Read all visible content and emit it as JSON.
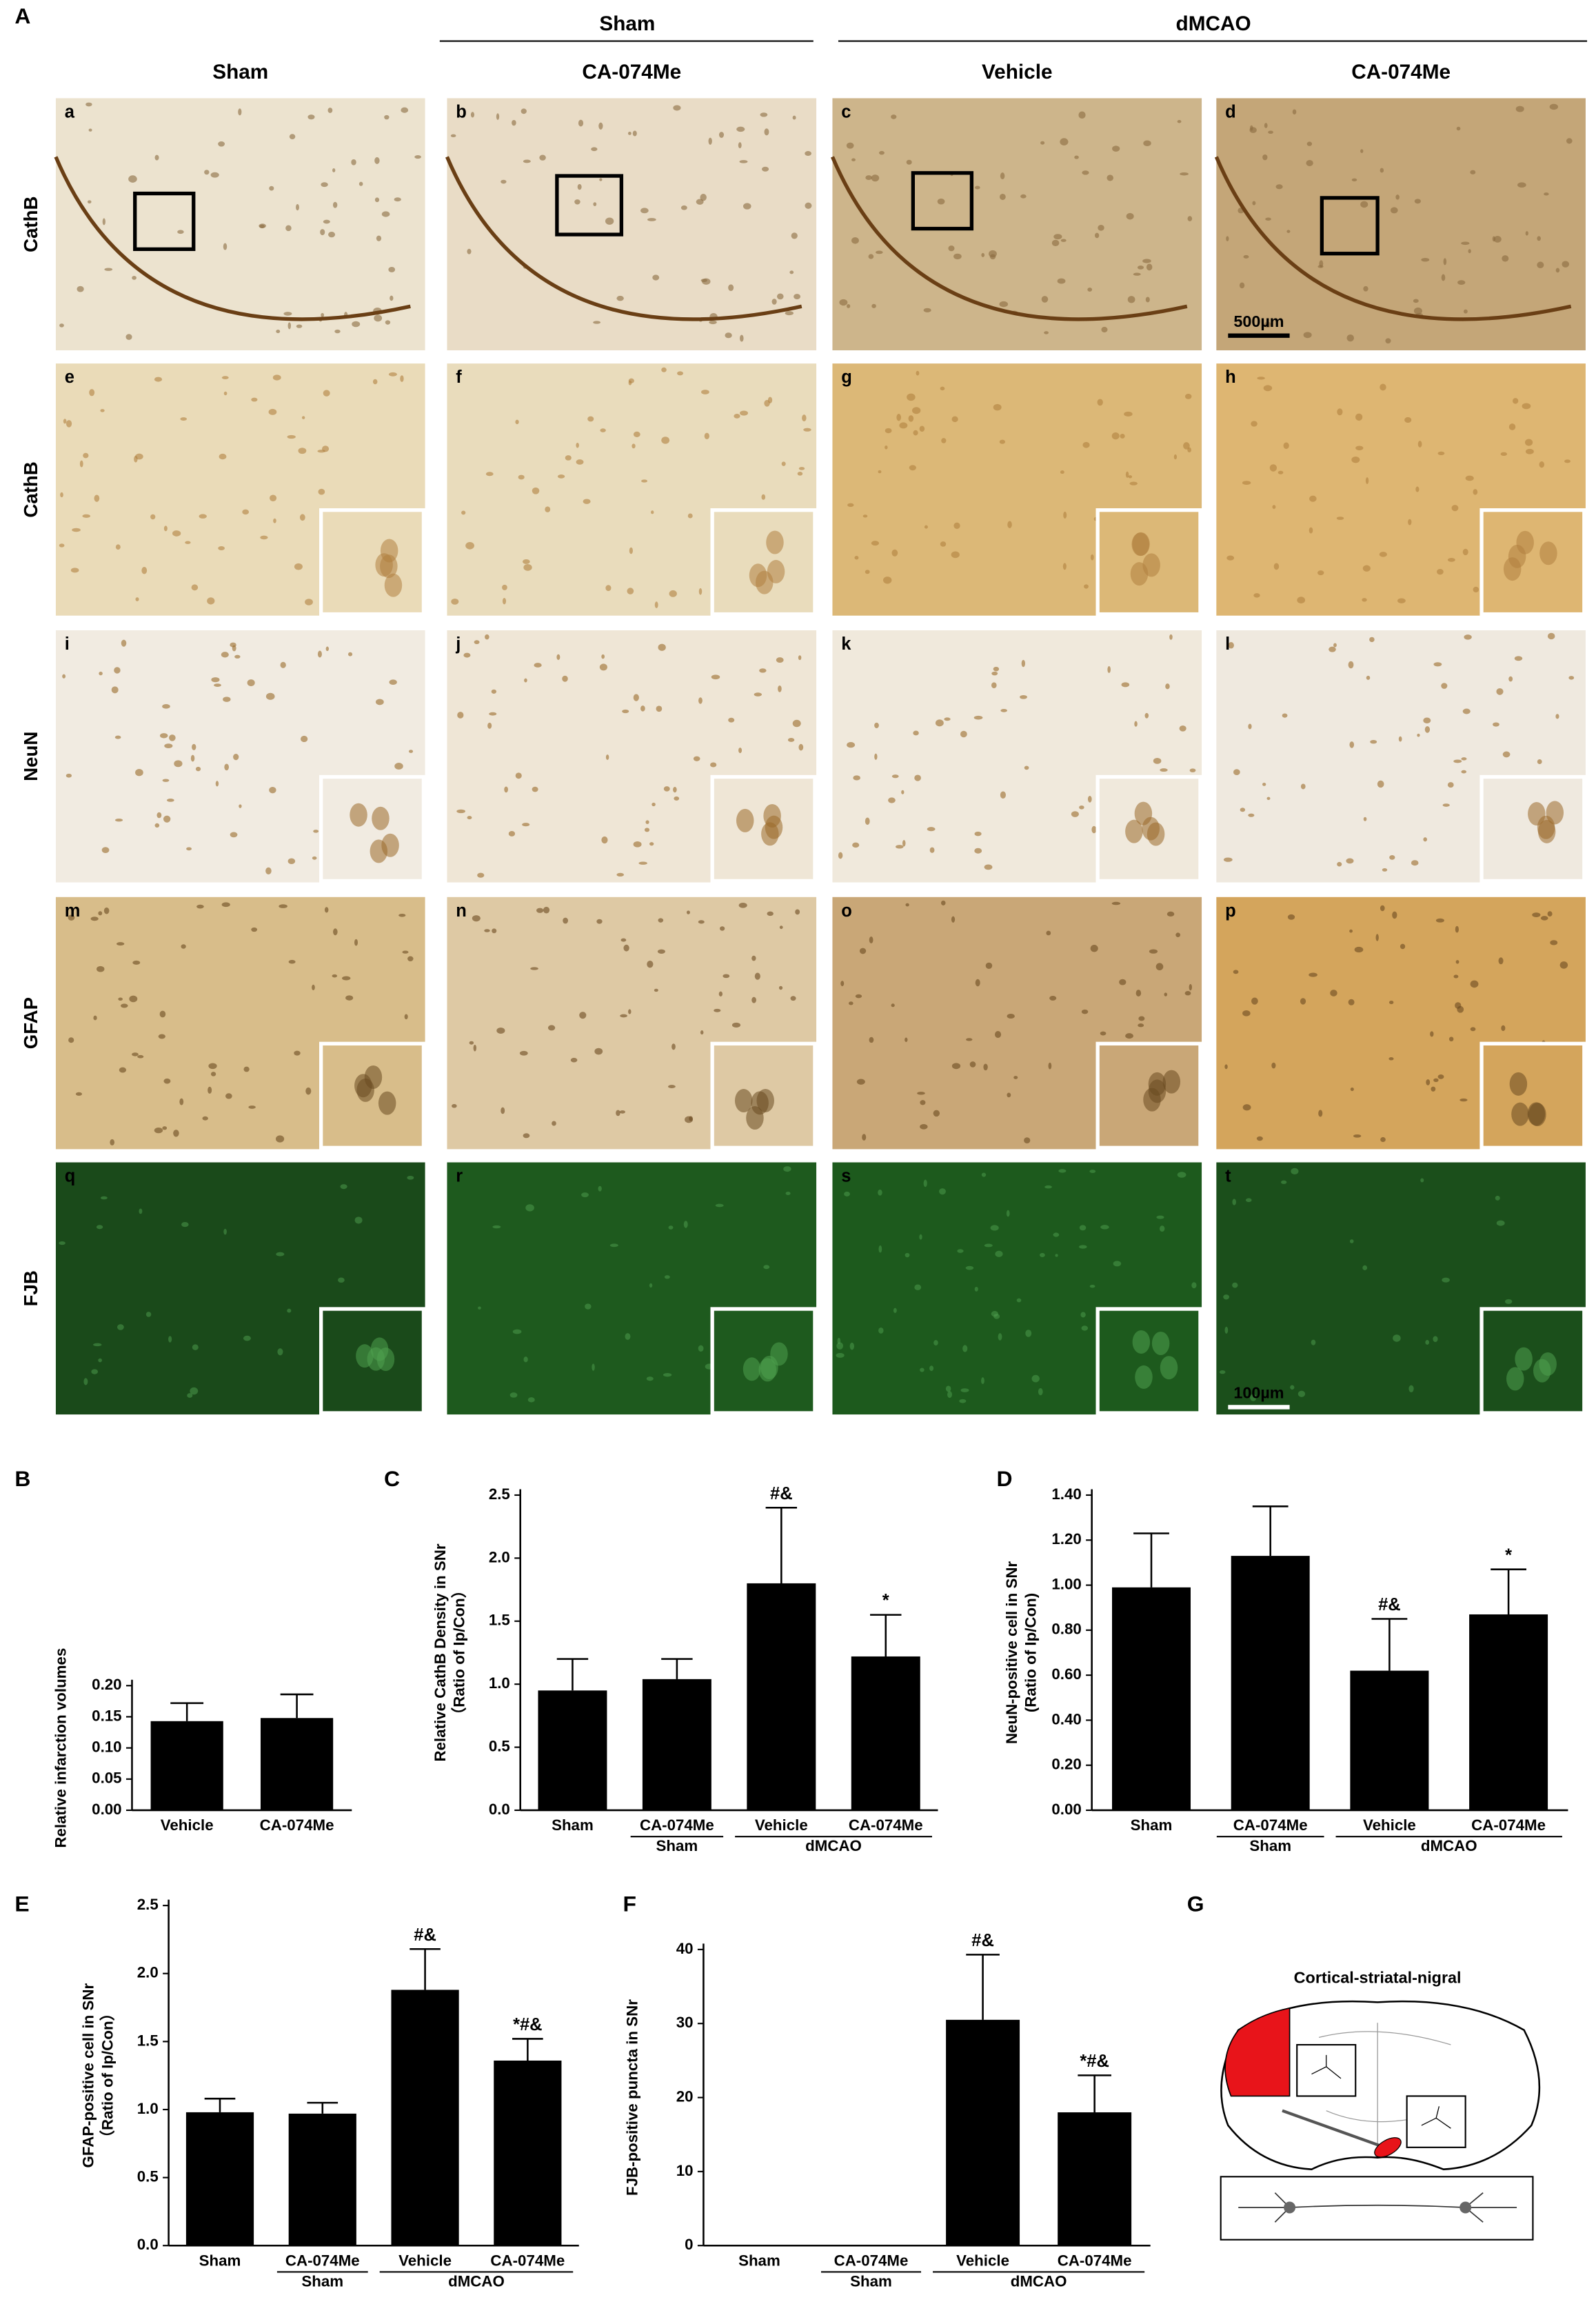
{
  "panel_A": {
    "label": "A",
    "group_headers": [
      "Sham",
      "dMCAO"
    ],
    "column_headers": [
      "Sham",
      "CA-074Me",
      "Vehicle",
      "CA-074Me"
    ],
    "row_labels": [
      "CathB",
      "CathB",
      "NeuN",
      "GFAP",
      "FJB"
    ],
    "panel_letters": [
      "a",
      "b",
      "c",
      "d",
      "e",
      "f",
      "g",
      "h",
      "i",
      "j",
      "k",
      "l",
      "m",
      "n",
      "o",
      "p",
      "q",
      "r",
      "s",
      "t"
    ],
    "scale_bars": [
      "500µm",
      "100µm"
    ]
  },
  "chart_data": [
    {
      "type": "bar",
      "panel": "B",
      "ylabel": [
        "Relative infarction volumes"
      ],
      "categories": [
        "Vehicle",
        "CA-074Me"
      ],
      "values": [
        0.143,
        0.148
      ],
      "errors": [
        0.029,
        0.038
      ],
      "groups": [],
      "annotations": [
        null,
        null
      ],
      "color": "#000000",
      "ylim": [
        0,
        0.2
      ],
      "yticks": [
        {
          "value": 0,
          "label": "0.00"
        },
        {
          "value": 0.05,
          "label": "0.05"
        },
        {
          "value": 0.1,
          "label": "0.10"
        },
        {
          "value": 0.15,
          "label": "0.15"
        },
        {
          "value": 0.2,
          "label": "0.20"
        }
      ]
    },
    {
      "type": "bar",
      "panel": "C",
      "ylabel": [
        "Relative CathB Density in SNr",
        "（Ratio of Ip/Con）"
      ],
      "categories": [
        "Sham",
        "CA-074Me",
        "Vehicle",
        "CA-074Me"
      ],
      "values": [
        0.95,
        1.04,
        1.8,
        1.22
      ],
      "errors": [
        0.25,
        0.16,
        0.6,
        0.33
      ],
      "groups": [
        "Sham",
        "dMCAO"
      ],
      "annotations": [
        null,
        null,
        "#&",
        "*"
      ],
      "color": "#000000",
      "ylim": [
        0,
        2.5
      ],
      "yticks": [
        {
          "value": 0,
          "label": "0.0"
        },
        {
          "value": 0.5,
          "label": "0.5"
        },
        {
          "value": 1,
          "label": "1.0"
        },
        {
          "value": 1.5,
          "label": "1.5"
        },
        {
          "value": 2,
          "label": "2.0"
        },
        {
          "value": 2.5,
          "label": "2.5"
        }
      ]
    },
    {
      "type": "bar",
      "panel": "D",
      "ylabel": [
        "NeuN-positive cell in SNr",
        "(Ratio of Ip/Con)"
      ],
      "categories": [
        "Sham",
        "CA-074Me",
        "Vehicle",
        "CA-074Me"
      ],
      "values": [
        0.99,
        1.13,
        0.62,
        0.87
      ],
      "errors": [
        0.24,
        0.22,
        0.23,
        0.2
      ],
      "groups": [
        "Sham",
        "dMCAO"
      ],
      "annotations": [
        null,
        null,
        "#&",
        "*"
      ],
      "color": "#000000",
      "ylim": [
        0,
        1.4
      ],
      "yticks": [
        {
          "value": 0,
          "label": "0.00"
        },
        {
          "value": 0.2,
          "label": "0.20"
        },
        {
          "value": 0.4,
          "label": "0.40"
        },
        {
          "value": 0.6,
          "label": "0.60"
        },
        {
          "value": 0.8,
          "label": "0.80"
        },
        {
          "value": 1,
          "label": "1.00"
        },
        {
          "value": 1.2,
          "label": "1.20"
        },
        {
          "value": 1.4,
          "label": "1.40"
        }
      ]
    },
    {
      "type": "bar",
      "panel": "E",
      "ylabel": [
        "GFAP-positive cell in SNr",
        "（Ratio of Ip/Con）"
      ],
      "categories": [
        "Sham",
        "CA-074Me",
        "Vehicle",
        "CA-074Me"
      ],
      "values": [
        0.98,
        0.97,
        1.88,
        1.36
      ],
      "errors": [
        0.1,
        0.08,
        0.3,
        0.16
      ],
      "groups": [
        "Sham",
        "dMCAO"
      ],
      "annotations": [
        null,
        null,
        "#&",
        "*#&"
      ],
      "color": "#000000",
      "ylim": [
        0,
        2.5
      ],
      "yticks": [
        {
          "value": 0,
          "label": "0.0"
        },
        {
          "value": 0.5,
          "label": "0.5"
        },
        {
          "value": 1,
          "label": "1.0"
        },
        {
          "value": 1.5,
          "label": "1.5"
        },
        {
          "value": 2,
          "label": "2.0"
        },
        {
          "value": 2.5,
          "label": "2.5"
        }
      ]
    },
    {
      "type": "bar",
      "panel": "F",
      "ylabel": [
        "FJB-positive puncta in SNr"
      ],
      "categories": [
        "Sham",
        "CA-074Me",
        "Vehicle",
        "CA-074Me"
      ],
      "values": [
        0,
        0,
        30.5,
        18
      ],
      "errors": [
        0,
        0,
        8.8,
        5
      ],
      "groups": [
        "Sham",
        "dMCAO"
      ],
      "annotations": [
        null,
        null,
        "#&",
        "*#&"
      ],
      "color": "#000000",
      "ylim": [
        0,
        40
      ],
      "yticks": [
        0,
        10,
        20,
        30,
        40
      ]
    }
  ],
  "panel_G": {
    "label": "G",
    "title": "Cortical-striatal-nigral"
  }
}
